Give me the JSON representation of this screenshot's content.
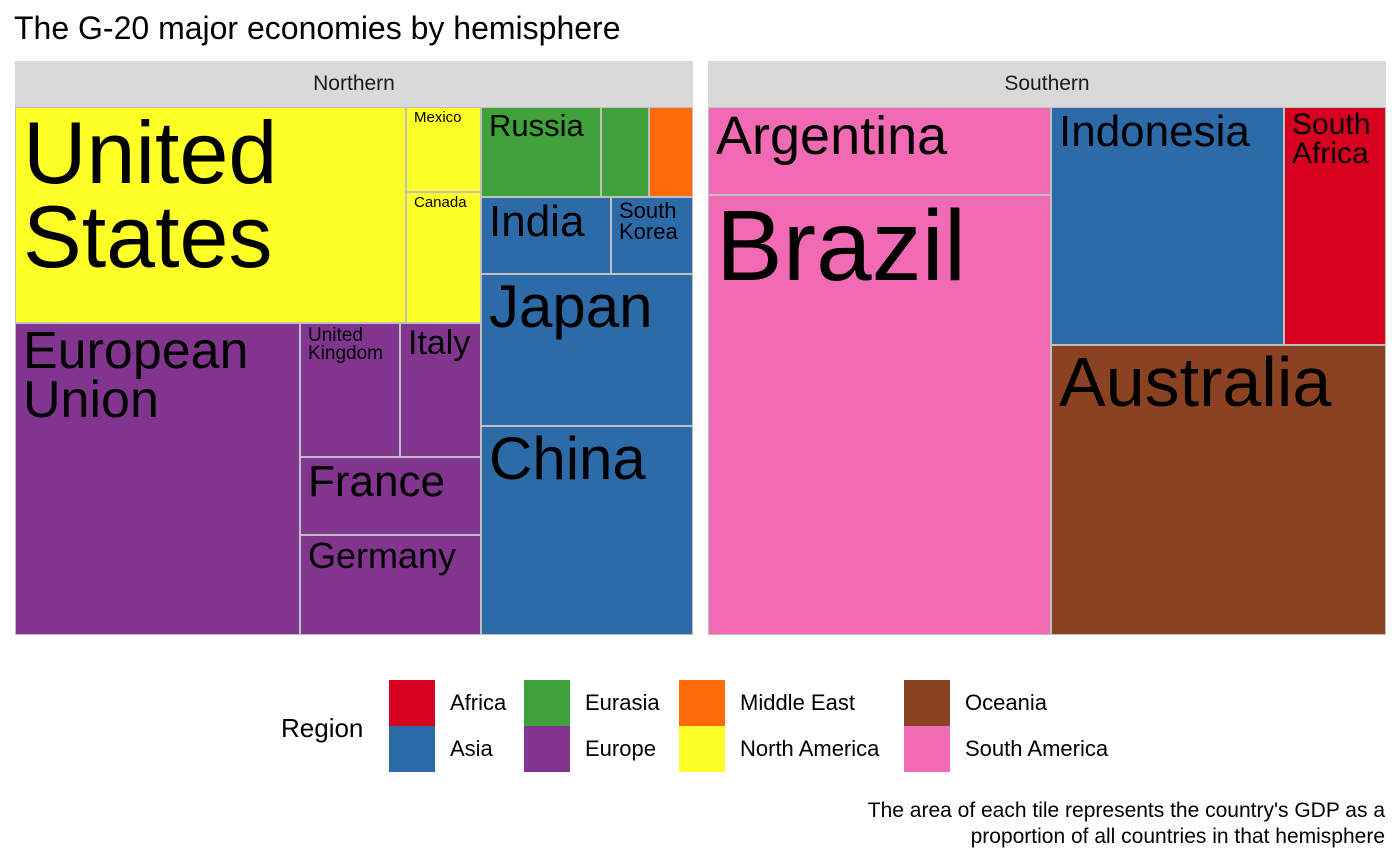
{
  "chart_data": {
    "type": "treemap",
    "title": "The G-20 major economies by hemisphere",
    "value_description": "The area of each tile represents the country's GDP as a proportion of all countries in that hemisphere",
    "caption": {
      "line1": "The area of each tile represents the country's GDP as a",
      "line2": "proportion of all countries in that hemisphere"
    },
    "facets": [
      {
        "name": "Northern",
        "tiles": [
          {
            "name": "United States",
            "label": "United\nStates",
            "region": "North America",
            "area_share": 0.227
          },
          {
            "name": "Mexico",
            "label": "Mexico",
            "region": "North America",
            "area_share": 0.0155
          },
          {
            "name": "Canada",
            "label": "Canada",
            "region": "North America",
            "area_share": 0.0232
          },
          {
            "name": "European Union",
            "label": "European\nUnion",
            "region": "Europe",
            "area_share": 0.2383
          },
          {
            "name": "United Kingdom",
            "label": "United\nKingdom",
            "region": "Europe",
            "area_share": 0.0277
          },
          {
            "name": "Italy",
            "label": "Italy",
            "region": "Europe",
            "area_share": 0.0232
          },
          {
            "name": "France",
            "label": "France",
            "region": "Europe",
            "area_share": 0.0264
          },
          {
            "name": "Germany",
            "label": "Germany",
            "region": "Europe",
            "area_share": 0.0348
          },
          {
            "name": "Russia",
            "label": "Russia",
            "region": "Eurasia",
            "area_share": 0.0253
          },
          {
            "name": "",
            "label": "",
            "region": "Eurasia",
            "area_share": 0.0099
          },
          {
            "name": "",
            "label": "",
            "region": "Middle East",
            "area_share": 0.0092
          },
          {
            "name": "India",
            "label": "India",
            "region": "Asia",
            "area_share": 0.0213
          },
          {
            "name": "South Korea",
            "label": "South\nKorea",
            "region": "Asia",
            "area_share": 0.0141
          },
          {
            "name": "Japan",
            "label": "Japan",
            "region": "Asia",
            "area_share": 0.0543
          },
          {
            "name": "China",
            "label": "China",
            "region": "Asia",
            "area_share": 0.0748
          }
        ]
      },
      {
        "name": "Southern",
        "tiles": [
          {
            "name": "Argentina",
            "label": "Argentina",
            "region": "South America",
            "area_share": 0.0852
          },
          {
            "name": "Brazil",
            "label": "Brazil",
            "region": "South America",
            "area_share": 0.4083
          },
          {
            "name": "Indonesia",
            "label": "Indonesia",
            "region": "Asia",
            "area_share": 0.1676
          },
          {
            "name": "South Africa",
            "label": "South\nAfrica",
            "region": "Africa",
            "area_share": 0.0987
          },
          {
            "name": "Australia",
            "label": "Australia",
            "region": "Oceania",
            "area_share": 0.2402
          }
        ]
      }
    ],
    "legend": {
      "title": "Region",
      "position": "bottom",
      "items": [
        {
          "label": "Africa",
          "color": "#d7001e"
        },
        {
          "label": "Asia",
          "color": "#2d6aa8"
        },
        {
          "label": "Eurasia",
          "color": "#3fa13a"
        },
        {
          "label": "Europe",
          "color": "#82358f"
        },
        {
          "label": "Middle East",
          "color": "#ff6a0a"
        },
        {
          "label": "North America",
          "color": "#ffff28"
        },
        {
          "label": "Oceania",
          "color": "#8b4220"
        },
        {
          "label": "South America",
          "color": "#f06bb4"
        }
      ]
    }
  }
}
